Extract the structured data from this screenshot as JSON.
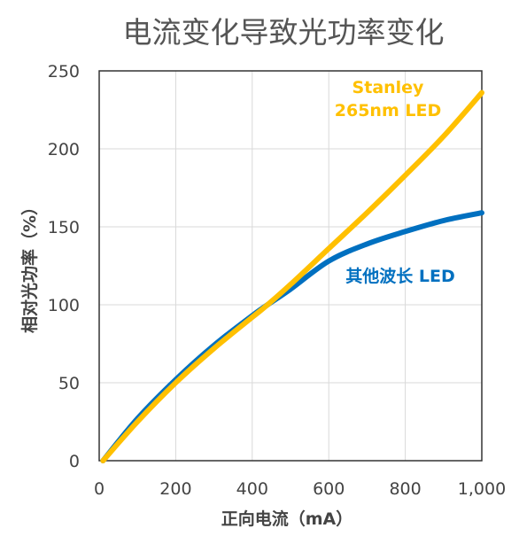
{
  "chart_data": {
    "type": "line",
    "title": "电流变化导致光功率变化",
    "xlabel": "正向电流（mA）",
    "ylabel": "相对光功率（%）",
    "xlim": [
      0,
      1000
    ],
    "ylim": [
      0,
      250
    ],
    "x_ticks": [
      "0",
      "200",
      "400",
      "600",
      "800",
      "1,000"
    ],
    "y_ticks": [
      "0",
      "50",
      "100",
      "150",
      "200",
      "250"
    ],
    "x_tick_values": [
      0,
      200,
      400,
      600,
      800,
      1000
    ],
    "y_tick_values": [
      0,
      50,
      100,
      150,
      200,
      250
    ],
    "grid": true,
    "series": [
      {
        "name": "其他波长 LED",
        "color": "#0070C0",
        "x": [
          10,
          100,
          200,
          300,
          400,
          440,
          500,
          600,
          700,
          800,
          900,
          1000
        ],
        "y": [
          0,
          27,
          52,
          74,
          93,
          100,
          110,
          128,
          139,
          147,
          154,
          159
        ]
      },
      {
        "name": "Stanley 265nm LED",
        "label_lines": [
          "Stanley",
          "265nm LED"
        ],
        "color": "#FFC000",
        "x": [
          10,
          100,
          200,
          300,
          400,
          440,
          500,
          600,
          700,
          800,
          900,
          1000
        ],
        "y": [
          0,
          25,
          50,
          72,
          92,
          100,
          113,
          136,
          159,
          183,
          208,
          236
        ]
      }
    ]
  }
}
